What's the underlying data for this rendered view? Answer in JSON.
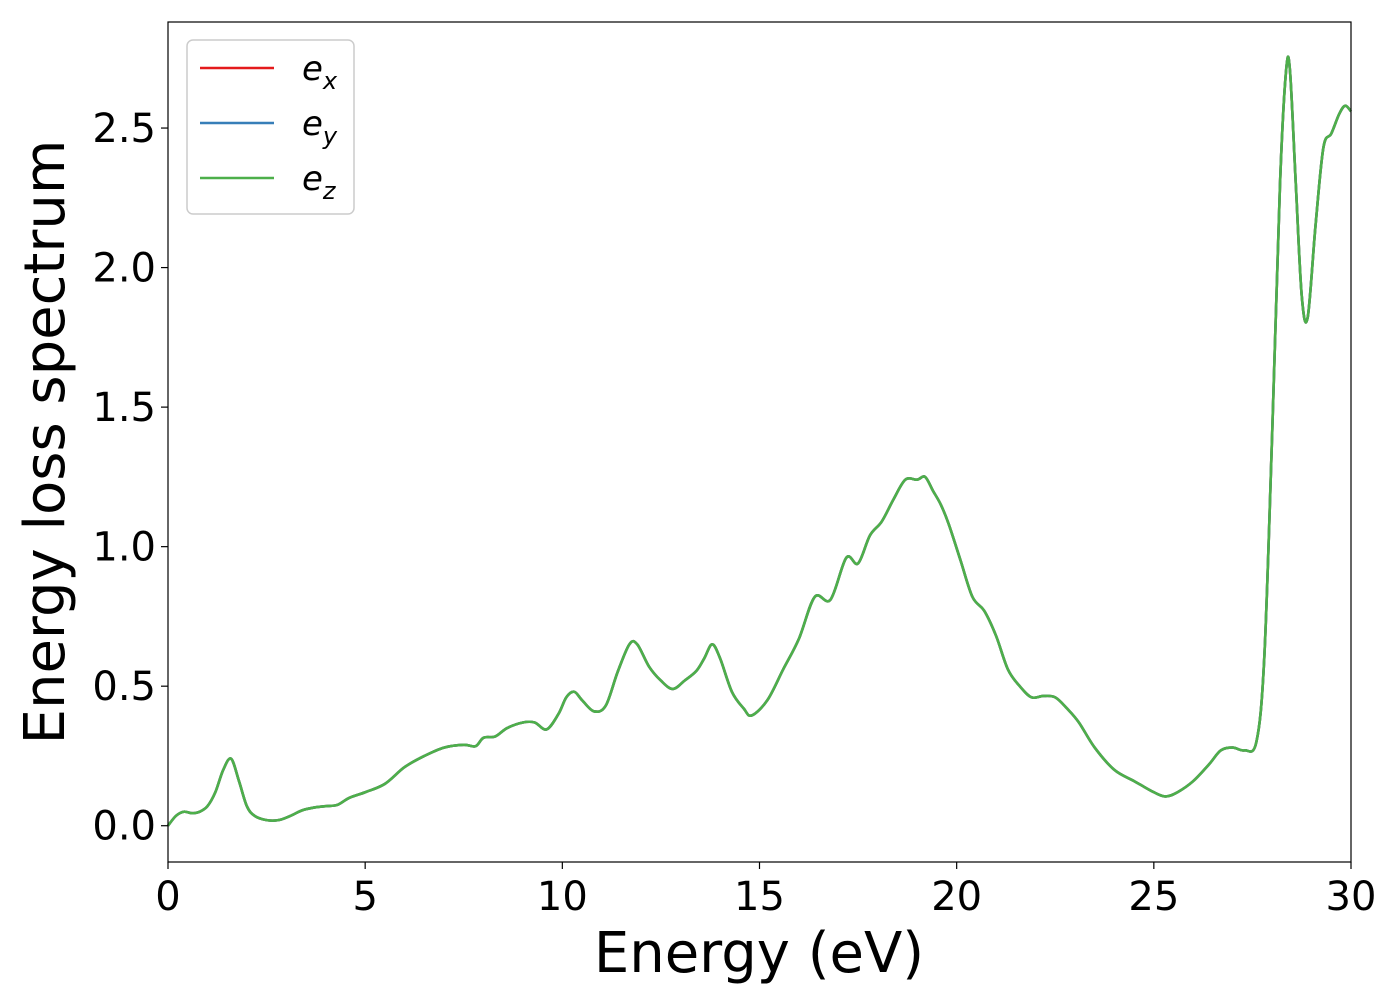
{
  "chart_data": {
    "type": "line",
    "title": "",
    "xlabel": "Energy (eV)",
    "ylabel": "Energy loss spectrum",
    "xlim": [
      0,
      30
    ],
    "ylim": [
      -0.13,
      2.88
    ],
    "xticks": [
      0,
      5,
      10,
      15,
      20,
      25,
      30
    ],
    "yticks": [
      0.0,
      0.5,
      1.0,
      1.5,
      2.0,
      2.5
    ],
    "xtick_labels": [
      "0",
      "5",
      "10",
      "15",
      "20",
      "25",
      "30"
    ],
    "ytick_labels": [
      "0.0",
      "0.5",
      "1.0",
      "1.5",
      "2.0",
      "2.5"
    ],
    "grid": false,
    "legend": {
      "placement": "top-left"
    },
    "series": [
      {
        "name": "e",
        "subscript": "x",
        "color": "#e41a1c"
      },
      {
        "name": "e",
        "subscript": "y",
        "color": "#377eb8"
      },
      {
        "name": "e",
        "subscript": "z",
        "color": "#4daf4a"
      }
    ],
    "x": [
      0,
      0.2,
      0.4,
      0.6,
      0.8,
      1.0,
      1.2,
      1.4,
      1.6,
      1.8,
      2.0,
      2.2,
      2.5,
      2.8,
      3.1,
      3.4,
      3.7,
      4.0,
      4.3,
      4.6,
      5.0,
      5.5,
      6.0,
      6.5,
      7.0,
      7.5,
      7.8,
      8.0,
      8.3,
      8.6,
      9.0,
      9.3,
      9.6,
      9.9,
      10.1,
      10.3,
      10.5,
      10.8,
      11.1,
      11.4,
      11.7,
      11.9,
      12.2,
      12.5,
      12.8,
      13.1,
      13.4,
      13.6,
      13.8,
      14.0,
      14.3,
      14.6,
      14.8,
      15.2,
      15.6,
      16.0,
      16.4,
      16.8,
      17.2,
      17.5,
      17.8,
      18.1,
      18.4,
      18.7,
      19.0,
      19.2,
      19.4,
      19.6,
      19.8,
      20.1,
      20.4,
      20.7,
      21.0,
      21.3,
      21.6,
      21.9,
      22.2,
      22.5,
      22.8,
      23.1,
      23.5,
      24.0,
      24.5,
      25.0,
      25.3,
      25.6,
      26.0,
      26.4,
      26.7,
      27.0,
      27.3,
      27.6,
      27.8,
      28.0,
      28.2,
      28.35,
      28.45,
      28.6,
      28.75,
      28.9,
      29.1,
      29.3,
      29.5,
      29.7,
      29.85,
      30.0
    ],
    "values": [
      [
        0.0,
        0.035,
        0.05,
        0.045,
        0.05,
        0.07,
        0.12,
        0.2,
        0.24,
        0.16,
        0.07,
        0.035,
        0.02,
        0.02,
        0.035,
        0.055,
        0.065,
        0.07,
        0.075,
        0.1,
        0.12,
        0.15,
        0.21,
        0.25,
        0.28,
        0.29,
        0.285,
        0.315,
        0.32,
        0.35,
        0.37,
        0.37,
        0.345,
        0.4,
        0.46,
        0.48,
        0.45,
        0.41,
        0.43,
        0.55,
        0.65,
        0.65,
        0.57,
        0.52,
        0.49,
        0.52,
        0.555,
        0.6,
        0.65,
        0.6,
        0.48,
        0.42,
        0.395,
        0.45,
        0.56,
        0.67,
        0.82,
        0.81,
        0.96,
        0.94,
        1.04,
        1.09,
        1.17,
        1.24,
        1.24,
        1.25,
        1.2,
        1.15,
        1.08,
        0.95,
        0.82,
        0.77,
        0.68,
        0.56,
        0.5,
        0.46,
        0.465,
        0.46,
        0.42,
        0.37,
        0.28,
        0.2,
        0.16,
        0.12,
        0.105,
        0.12,
        0.16,
        0.22,
        0.27,
        0.28,
        0.27,
        0.3,
        0.6,
        1.4,
        2.3,
        2.7,
        2.71,
        2.3,
        1.9,
        1.82,
        2.15,
        2.43,
        2.48,
        2.55,
        2.58,
        2.56
      ],
      [
        0.0,
        0.035,
        0.05,
        0.045,
        0.05,
        0.07,
        0.12,
        0.2,
        0.24,
        0.16,
        0.07,
        0.035,
        0.02,
        0.02,
        0.035,
        0.055,
        0.065,
        0.07,
        0.075,
        0.1,
        0.12,
        0.15,
        0.21,
        0.25,
        0.28,
        0.29,
        0.285,
        0.315,
        0.32,
        0.35,
        0.37,
        0.37,
        0.345,
        0.4,
        0.46,
        0.48,
        0.45,
        0.41,
        0.43,
        0.55,
        0.65,
        0.65,
        0.57,
        0.52,
        0.49,
        0.52,
        0.555,
        0.6,
        0.65,
        0.6,
        0.48,
        0.42,
        0.395,
        0.45,
        0.56,
        0.67,
        0.82,
        0.81,
        0.96,
        0.94,
        1.04,
        1.09,
        1.17,
        1.24,
        1.24,
        1.25,
        1.2,
        1.15,
        1.08,
        0.95,
        0.82,
        0.77,
        0.68,
        0.56,
        0.5,
        0.46,
        0.465,
        0.46,
        0.42,
        0.37,
        0.28,
        0.2,
        0.16,
        0.12,
        0.105,
        0.12,
        0.16,
        0.22,
        0.27,
        0.28,
        0.27,
        0.3,
        0.6,
        1.4,
        2.3,
        2.7,
        2.71,
        2.3,
        1.9,
        1.82,
        2.15,
        2.43,
        2.48,
        2.55,
        2.58,
        2.56
      ],
      [
        0.0,
        0.035,
        0.05,
        0.045,
        0.05,
        0.07,
        0.12,
        0.2,
        0.24,
        0.16,
        0.07,
        0.035,
        0.02,
        0.02,
        0.035,
        0.055,
        0.065,
        0.07,
        0.075,
        0.1,
        0.12,
        0.15,
        0.21,
        0.25,
        0.28,
        0.29,
        0.285,
        0.315,
        0.32,
        0.35,
        0.37,
        0.37,
        0.345,
        0.4,
        0.46,
        0.48,
        0.45,
        0.41,
        0.43,
        0.55,
        0.65,
        0.65,
        0.57,
        0.52,
        0.49,
        0.52,
        0.555,
        0.6,
        0.65,
        0.6,
        0.48,
        0.42,
        0.395,
        0.45,
        0.56,
        0.67,
        0.82,
        0.81,
        0.96,
        0.94,
        1.04,
        1.09,
        1.17,
        1.24,
        1.24,
        1.25,
        1.2,
        1.15,
        1.08,
        0.95,
        0.82,
        0.77,
        0.68,
        0.56,
        0.5,
        0.46,
        0.465,
        0.46,
        0.42,
        0.37,
        0.28,
        0.2,
        0.16,
        0.12,
        0.105,
        0.12,
        0.16,
        0.22,
        0.27,
        0.28,
        0.27,
        0.3,
        0.6,
        1.4,
        2.3,
        2.7,
        2.71,
        2.3,
        1.9,
        1.82,
        2.15,
        2.43,
        2.48,
        2.55,
        2.58,
        2.56
      ]
    ]
  }
}
